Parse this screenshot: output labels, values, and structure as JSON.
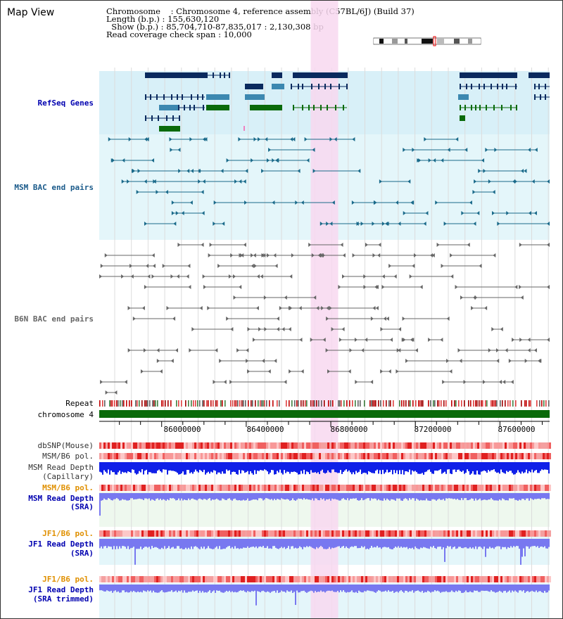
{
  "view_title": "Map View",
  "info": {
    "chromosome_line": "Chromosome    : Chromosome 4, reference assembly (C57BL/6J) (Build 37)",
    "length_line": "Length (b.p.) : 155,630,120",
    "show_line": "  Show (b.p.) : 85,704,710-87,835,017 : 2,130,308 bp",
    "coverage_line": "Read coverage check span : 10,000"
  },
  "tracks": {
    "refseq": "RefSeq Genes",
    "msm_bac": "MSM BAC end pairs",
    "b6n_bac": "B6N BAC end pairs",
    "repeat": "Repeat",
    "chromosome": "chromosome 4",
    "dbsnp": "dbSNP(Mouse)",
    "msm_b6_pol_1": "MSM/B6 pol.",
    "msm_depth_cap_1": "MSM Read Depth",
    "msm_depth_cap_2": "(Capillary)",
    "msm_b6_pol_2": "MSM/B6 pol.",
    "msm_depth_sra_1": "MSM Read Depth",
    "msm_depth_sra_2": "(SRA)",
    "jf1_pol_1": "JF1/B6 pol.",
    "jf1_depth_sra_1": "JF1 Read Depth",
    "jf1_depth_sra_2": "(SRA)",
    "jf1_pol_2": "JF1/B6 pol.",
    "jf1_depth_trim_1": "JF1 Read Depth",
    "jf1_depth_trim_2": "(SRA trimmed)"
  },
  "axis": {
    "start_bp": 85704710,
    "end_bp": 87835017,
    "tick_labels": [
      "86000000",
      "86400000",
      "86800000",
      "87200000",
      "87600000"
    ],
    "tick_values": [
      86000000,
      86400000,
      86800000,
      87200000,
      87600000
    ]
  },
  "highlight": {
    "start_bp": 86705000,
    "end_bp": 86835000
  },
  "colors": {
    "refseq_bg": "#d8f0f8",
    "gene_dark": "#0a2a5e",
    "gene_mid": "#3c88b0",
    "gene_green": "#0a6a0a",
    "msm_pair": "#1a6a8a",
    "b6n_pair": "#666666",
    "highlight": "#f8d8f0",
    "chrom_bar": "#0a6a0a",
    "label_blue": "#0000b0",
    "label_orange": "#e09000",
    "label_msm_blue": "#1a5a8a",
    "depth_blue": "#1020e8",
    "depth_light": "#7878f0",
    "pol_red": "#f04040"
  }
}
